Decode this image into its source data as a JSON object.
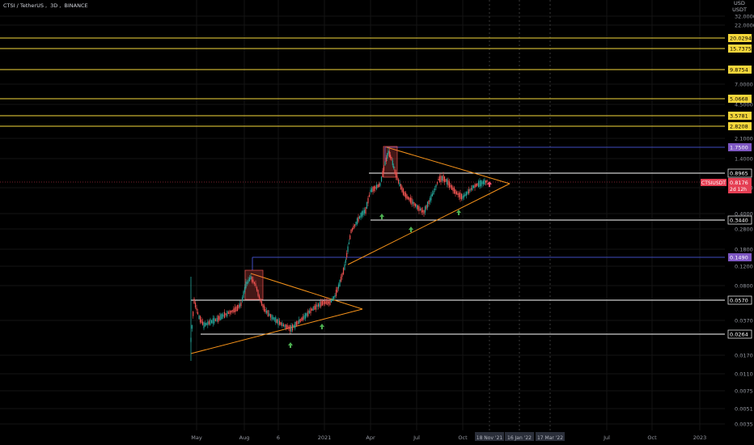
{
  "header": {
    "symbol": "CTSI / TetherUS",
    "interval": "3D",
    "exchange": "BINANCE"
  },
  "price_axis": {
    "currency_line1": "USD",
    "currency_line2": "USDT",
    "scale": "log",
    "ticks": [
      "32.0000",
      "22.0000",
      "7.0000",
      "4.5000",
      "2.1000",
      "1.4000",
      "0.6000",
      "0.4000",
      "0.2800",
      "0.1800",
      "0.1200",
      "0.0800",
      "0.0370",
      "0.0170",
      "0.0110",
      "0.0075",
      "0.0051",
      "0.0035"
    ]
  },
  "time_axis": {
    "ticks": [
      "May",
      "Aug",
      "6",
      "2021",
      "Apr",
      "Jul",
      "Oct",
      "Jul",
      "Oct",
      "2023"
    ],
    "highlighted_dates": [
      "18 Nov '21",
      "16 Jan '22",
      "17 Mar '22"
    ]
  },
  "horizontal_levels": [
    {
      "label": "20.0294",
      "kind": "resistance-yellow"
    },
    {
      "label": "15.7375",
      "kind": "resistance-yellow"
    },
    {
      "label": "9.8754",
      "kind": "resistance-yellow"
    },
    {
      "label": "5.0668",
      "kind": "resistance-yellow"
    },
    {
      "label": "3.5781",
      "kind": "resistance-yellow"
    },
    {
      "label": "2.8208",
      "kind": "resistance-yellow"
    },
    {
      "label": "1.7500",
      "kind": "key-purple"
    },
    {
      "label": "0.8965",
      "kind": "support-white"
    },
    {
      "label": "0.3440",
      "kind": "support-white"
    },
    {
      "label": "0.1490",
      "kind": "key-purple"
    },
    {
      "label": "0.0570",
      "kind": "support-white"
    },
    {
      "label": "0.0264",
      "kind": "support-white"
    }
  ],
  "current_price": {
    "symbol_tag": "CTSIUSDT",
    "price": "0.8176",
    "countdown": "2d 12h"
  },
  "colors": {
    "background": "#000000",
    "yellow_level": "#f5d73b",
    "purple_level": "#7e57c2",
    "purple_line": "#3f4dbf",
    "white_level": "#ffffff",
    "triangle": "#f7931a",
    "candle_up": "#26a69a",
    "candle_down": "#ef5350",
    "arrow_up": "#4caf50",
    "arrow_red": "#ff4d6d",
    "price_tag": "#e53e53"
  },
  "icons": {
    "signal_up": "up-arrow-icon",
    "signal_red": "red-up-arrow-icon"
  }
}
